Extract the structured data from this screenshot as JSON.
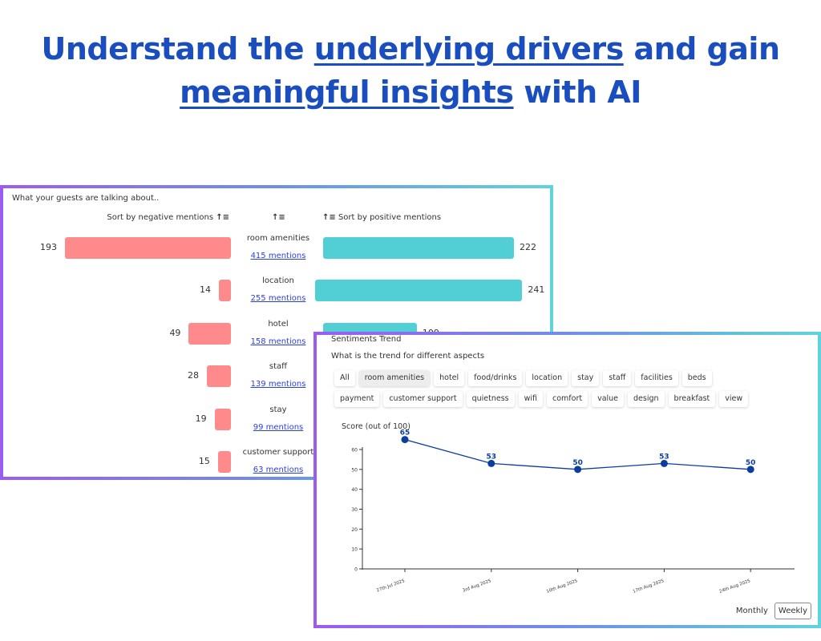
{
  "headline": {
    "part1": "Understand the ",
    "part2": "underlying drivers",
    "part3": " and gain",
    "part4": "meaningful insights",
    "part5": " with AI"
  },
  "mentions_panel": {
    "title": "What your guests are talking about..",
    "sort_negative": "Sort by negative mentions",
    "sort_positive": "Sort by positive mentions",
    "rows": [
      {
        "aspect": "room amenities",
        "mentions": "415 mentions",
        "negative": 193,
        "positive": 222
      },
      {
        "aspect": "location",
        "mentions": "255 mentions",
        "negative": 14,
        "positive": 241
      },
      {
        "aspect": "hotel",
        "mentions": "158 mentions",
        "negative": 49,
        "positive": 109
      },
      {
        "aspect": "staff",
        "mentions": "139 mentions",
        "negative": 28,
        "positive": null
      },
      {
        "aspect": "stay",
        "mentions": "99 mentions",
        "negative": 19,
        "positive": null
      },
      {
        "aspect": "customer support",
        "mentions": "63 mentions",
        "negative": 15,
        "positive": null
      }
    ],
    "colors": {
      "negative": "#ff8a8c",
      "positive": "#52cfd5"
    }
  },
  "trend_panel": {
    "title": "Sentiments Trend",
    "subtitle": "What is the trend for different aspects",
    "chips": [
      "All",
      "room amenities",
      "hotel",
      "food/drinks",
      "location",
      "stay",
      "staff",
      "facilities",
      "beds",
      "payment",
      "customer support",
      "quietness",
      "wifi",
      "comfort",
      "value",
      "design",
      "breakfast",
      "view"
    ],
    "active_chip": "room amenities",
    "granularity": {
      "monthly": "Monthly",
      "weekly": "Weekly",
      "active": "Weekly"
    }
  },
  "chart_data": {
    "type": "line",
    "ylabel": "Score (out of 100)",
    "x": [
      "27th Jul 2025",
      "3rd Aug 2025",
      "10th Aug 2025",
      "17th Aug 2025",
      "24th Aug 2025"
    ],
    "series": [
      {
        "values": [
          65,
          53,
          50,
          53,
          50
        ]
      }
    ],
    "ylim": [
      0,
      60
    ],
    "yticks": [
      0,
      10,
      20,
      30,
      40,
      50,
      60
    ],
    "color": "#0b3d9e"
  }
}
